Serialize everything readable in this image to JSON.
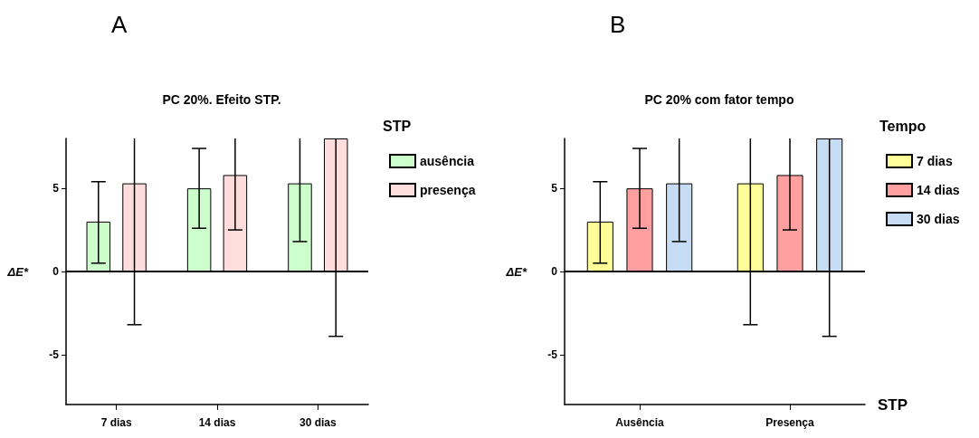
{
  "chart_data": [
    {
      "type": "bar",
      "title": "PC 20%. Efeito STP.",
      "ylabel": "ΔE*",
      "legend_title": "STP",
      "annotations": [
        "A"
      ],
      "categories": [
        "7 dias",
        "14 dias",
        "30 dias"
      ],
      "series": [
        {
          "name": "ausência",
          "color": "#ccffcc",
          "values": [
            3.0,
            5.0,
            5.3
          ],
          "errors": [
            [
              0.5,
              5.4
            ],
            [
              2.6,
              7.4
            ],
            [
              1.8,
              8
            ]
          ]
        },
        {
          "name": "presença",
          "color": "#ffdddd",
          "values": [
            5.3,
            5.8,
            8
          ],
          "errors": [
            [
              -3.2,
              8
            ],
            [
              2.5,
              8
            ],
            [
              -3.9,
              8
            ]
          ]
        }
      ],
      "ylim": [
        -8,
        8
      ],
      "yticks": [
        -5,
        0,
        5
      ],
      "ref_lines": [
        {
          "axis": "y",
          "value": 0,
          "color": "#000000"
        }
      ],
      "grid": false,
      "legend": "right"
    },
    {
      "type": "bar",
      "title": "PC 20% com fator tempo",
      "ylabel": "ΔE*",
      "xlabel": "STP",
      "legend_title": "Tempo",
      "annotations": [
        "B"
      ],
      "categories": [
        "Ausência",
        "Presença"
      ],
      "series": [
        {
          "name": "7 dias",
          "color": "#ffff99",
          "values": [
            3.0,
            5.3
          ],
          "errors": [
            [
              0.5,
              5.4
            ],
            [
              -3.2,
              8
            ]
          ]
        },
        {
          "name": "14 dias",
          "color": "#ff9f9f",
          "values": [
            5.0,
            5.8
          ],
          "errors": [
            [
              2.6,
              7.4
            ],
            [
              2.5,
              8
            ]
          ]
        },
        {
          "name": "30 dias",
          "color": "#c6dcf5",
          "values": [
            5.3,
            8
          ],
          "errors": [
            [
              1.8,
              8
            ],
            [
              -3.9,
              8
            ]
          ]
        }
      ],
      "ylim": [
        -8,
        8
      ],
      "yticks": [
        -5,
        0,
        5
      ],
      "ref_lines": [
        {
          "axis": "y",
          "value": 0,
          "color": "#000000"
        }
      ],
      "grid": false,
      "legend": "right"
    }
  ]
}
